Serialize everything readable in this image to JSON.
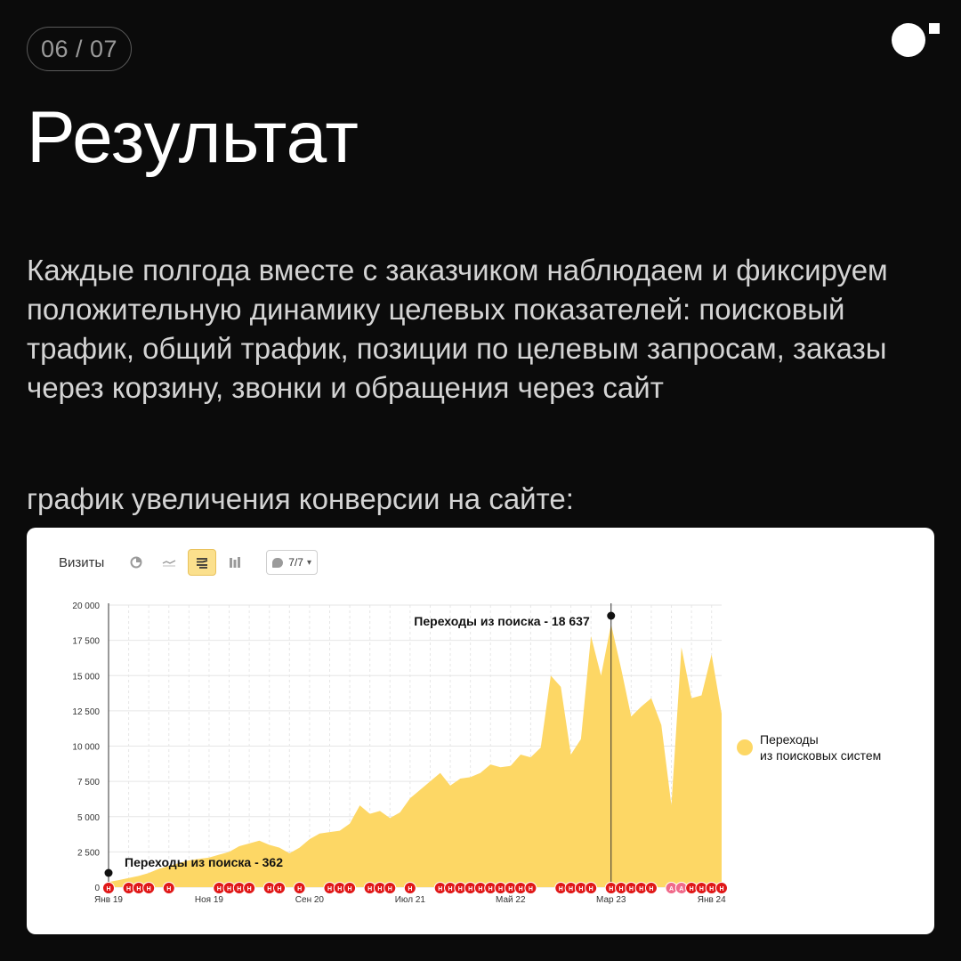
{
  "slide": {
    "counter": "06 / 07"
  },
  "title": "Результат",
  "lead": "Каждые полгода вместе с заказчиком наблюдаем и фиксируем положительную динамику целевых показателей: поисковый трафик, общий трафик, позиции по целевым запросам, заказы через корзину, звонки и обращения через сайт",
  "chart_caption": "график увеличения конверсии на сайте:",
  "toolbar": {
    "metric_label": "Визиты",
    "icons": [
      "pie-chart-icon",
      "line-chart-icon",
      "area-chart-icon",
      "bar-chart-icon"
    ],
    "active": "area-chart-icon",
    "segments_value": "7/7"
  },
  "legend": {
    "label": "Переходы\nиз поисковых систем",
    "color": "#fdd765"
  },
  "colors": {
    "area": "#fdd765",
    "marker": "#e01818",
    "marker_alt": "#f06a8a",
    "grid": "#e6e6e6"
  },
  "chart_data": {
    "type": "area",
    "series": [
      {
        "name": "Переходы из поисковых систем",
        "x": [
          "Янв 19",
          "Фев 19",
          "Мар 19",
          "Апр 19",
          "Май 19",
          "Июн 19",
          "Июл 19",
          "Авг 19",
          "Сен 19",
          "Окт 19",
          "Ноя 19",
          "Дек 19",
          "Янв 20",
          "Фев 20",
          "Мар 20",
          "Апр 20",
          "Май 20",
          "Июн 20",
          "Июл 20",
          "Авг 20",
          "Сен 20",
          "Окт 20",
          "Ноя 20",
          "Дек 20",
          "Янв 21",
          "Фев 21",
          "Мар 21",
          "Апр 21",
          "Май 21",
          "Июн 21",
          "Июл 21",
          "Авг 21",
          "Сен 21",
          "Окт 21",
          "Ноя 21",
          "Дек 21",
          "Янв 22",
          "Фев 22",
          "Мар 22",
          "Апр 22",
          "Май 22",
          "Июн 22",
          "Июл 22",
          "Авг 22",
          "Сен 22",
          "Окт 22",
          "Ноя 22",
          "Дек 22",
          "Янв 23",
          "Фев 23",
          "Мар 23",
          "Апр 23",
          "Май 23",
          "Июн 23",
          "Июл 23",
          "Авг 23",
          "Сен 23",
          "Окт 23",
          "Ноя 23",
          "Дек 23",
          "Янв 24",
          "Фев 24"
        ],
        "values": [
          362,
          500,
          650,
          800,
          1000,
          1300,
          1500,
          1700,
          1900,
          2000,
          2100,
          2300,
          2500,
          2900,
          3100,
          3300,
          3000,
          2800,
          2400,
          2800,
          3400,
          3800,
          3900,
          4000,
          4500,
          5800,
          5200,
          5400,
          4900,
          5300,
          6300,
          6900,
          7500,
          8100,
          7200,
          7700,
          7800,
          8100,
          8700,
          8500,
          8600,
          9400,
          9200,
          9900,
          15000,
          14200,
          9400,
          10500,
          17800,
          15000,
          18637,
          15500,
          12100,
          12800,
          13400,
          11500,
          5800,
          17000,
          13400,
          13600,
          16500,
          12300
        ]
      }
    ],
    "x_tick_labels": [
      "Янв 19",
      "Ноя 19",
      "Сен 20",
      "Июл 21",
      "Май 22",
      "Мар 23",
      "Янв 24"
    ],
    "ylim": [
      0,
      20000
    ],
    "y_ticks": [
      0,
      2500,
      5000,
      7500,
      10000,
      12500,
      15000,
      17500,
      20000
    ],
    "y_tick_labels": [
      "0",
      "2 500",
      "5 000",
      "7 500",
      "10 000",
      "12 500",
      "15 000",
      "17 500",
      "20 000"
    ],
    "grid": true,
    "legend_position": "right",
    "annotations": [
      {
        "label": "Переходы из поиска - 362",
        "x": "Янв 19",
        "value": 362
      },
      {
        "label": "Переходы из поиска - 18 637",
        "x": "Мар 23",
        "value": 18637
      }
    ],
    "markers": [
      {
        "x": "Янв 19",
        "label": "Н"
      },
      {
        "x": "Мар 19",
        "label": "Н"
      },
      {
        "x": "Апр 19",
        "label": "Н"
      },
      {
        "x": "Май 19",
        "label": "Н"
      },
      {
        "x": "Июл 19",
        "label": "Н"
      },
      {
        "x": "Дек 19",
        "label": "Н"
      },
      {
        "x": "Янв 20",
        "label": "Н"
      },
      {
        "x": "Фев 20",
        "label": "Н"
      },
      {
        "x": "Мар 20",
        "label": "Н"
      },
      {
        "x": "Май 20",
        "label": "Н"
      },
      {
        "x": "Июн 20",
        "label": "Н"
      },
      {
        "x": "Авг 20",
        "label": "Н"
      },
      {
        "x": "Ноя 20",
        "label": "Н"
      },
      {
        "x": "Дек 20",
        "label": "Н"
      },
      {
        "x": "Янв 21",
        "label": "Н"
      },
      {
        "x": "Мар 21",
        "label": "Н"
      },
      {
        "x": "Апр 21",
        "label": "Н"
      },
      {
        "x": "Май 21",
        "label": "Н"
      },
      {
        "x": "Июл 21",
        "label": "Н"
      },
      {
        "x": "Окт 21",
        "label": "Н"
      },
      {
        "x": "Ноя 21",
        "label": "Н"
      },
      {
        "x": "Дек 21",
        "label": "Н"
      },
      {
        "x": "Янв 22",
        "label": "Н"
      },
      {
        "x": "Фев 22",
        "label": "Н"
      },
      {
        "x": "Мар 22",
        "label": "Н"
      },
      {
        "x": "Апр 22",
        "label": "Н"
      },
      {
        "x": "Май 22",
        "label": "Н"
      },
      {
        "x": "Июн 22",
        "label": "Н"
      },
      {
        "x": "Июл 22",
        "label": "Н"
      },
      {
        "x": "Окт 22",
        "label": "Н"
      },
      {
        "x": "Ноя 22",
        "label": "Н"
      },
      {
        "x": "Дек 22",
        "label": "Н"
      },
      {
        "x": "Янв 23",
        "label": "Н"
      },
      {
        "x": "Мар 23",
        "label": "Н"
      },
      {
        "x": "Апр 23",
        "label": "Н"
      },
      {
        "x": "Май 23",
        "label": "Н"
      },
      {
        "x": "Июн 23",
        "label": "Н"
      },
      {
        "x": "Июл 23",
        "label": "Н"
      },
      {
        "x": "Сен 23",
        "label": "А"
      },
      {
        "x": "Окт 23",
        "label": "А"
      },
      {
        "x": "Ноя 23",
        "label": "Н"
      },
      {
        "x": "Дек 23",
        "label": "Н"
      },
      {
        "x": "Янв 24",
        "label": "Н"
      },
      {
        "x": "Фев 24",
        "label": "Н"
      }
    ]
  }
}
